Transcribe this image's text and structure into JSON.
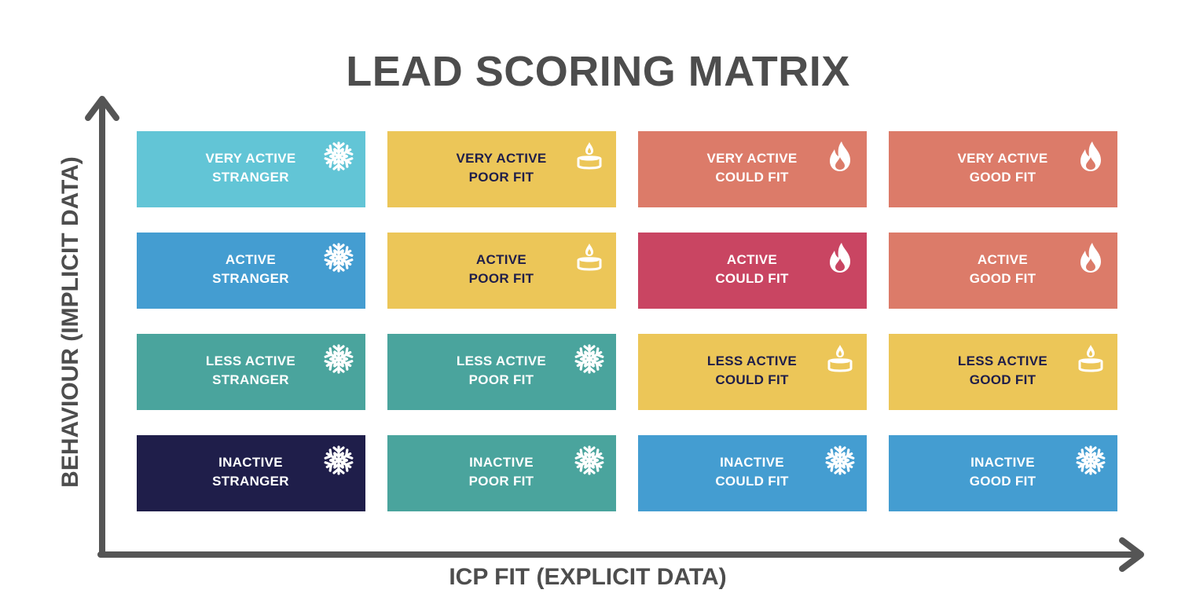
{
  "title": "LEAD SCORING MATRIX",
  "x_axis_label": "ICP FIT (EXPLICIT DATA)",
  "y_axis_label": "BEHAVIOUR (IMPLICIT DATA)",
  "colors": {
    "axis": "#555555",
    "cyan": "#62c5d6",
    "yellow": "#ecc658",
    "salmon": "#dc7b69",
    "crimson": "#c94562",
    "blue": "#449dd1",
    "teal": "#4aa49d",
    "navy": "#1f1e4a"
  },
  "rows": [
    [
      {
        "line1": "VERY ACTIVE",
        "line2": "STRANGER",
        "bg": "#62c5d6",
        "text_color": "#ffffff",
        "icon": "snowflake-icon"
      },
      {
        "line1": "VERY ACTIVE",
        "line2": "POOR FIT",
        "bg": "#ecc658",
        "text_color": "#1f1e4a",
        "icon": "candle-icon"
      },
      {
        "line1": "VERY ACTIVE",
        "line2": "COULD FIT",
        "bg": "#dc7b69",
        "text_color": "#ffffff",
        "icon": "flame-icon"
      },
      {
        "line1": "VERY ACTIVE",
        "line2": "GOOD FIT",
        "bg": "#dc7b69",
        "text_color": "#ffffff",
        "icon": "flame-icon"
      }
    ],
    [
      {
        "line1": "ACTIVE",
        "line2": "STRANGER",
        "bg": "#449dd1",
        "text_color": "#ffffff",
        "icon": "snowflake-icon"
      },
      {
        "line1": "ACTIVE",
        "line2": "POOR FIT",
        "bg": "#ecc658",
        "text_color": "#1f1e4a",
        "icon": "candle-icon"
      },
      {
        "line1": "ACTIVE",
        "line2": "COULD FIT",
        "bg": "#c94562",
        "text_color": "#ffffff",
        "icon": "flame-icon"
      },
      {
        "line1": "ACTIVE",
        "line2": "GOOD FIT",
        "bg": "#dc7b69",
        "text_color": "#ffffff",
        "icon": "flame-icon"
      }
    ],
    [
      {
        "line1": "LESS ACTIVE",
        "line2": "STRANGER",
        "bg": "#4aa49d",
        "text_color": "#ffffff",
        "icon": "snowflake-icon"
      },
      {
        "line1": "LESS ACTIVE",
        "line2": "POOR FIT",
        "bg": "#4aa49d",
        "text_color": "#ffffff",
        "icon": "snowflake-icon"
      },
      {
        "line1": "LESS ACTIVE",
        "line2": "COULD FIT",
        "bg": "#ecc658",
        "text_color": "#1f1e4a",
        "icon": "candle-icon"
      },
      {
        "line1": "LESS ACTIVE",
        "line2": "GOOD FIT",
        "bg": "#ecc658",
        "text_color": "#1f1e4a",
        "icon": "candle-icon"
      }
    ],
    [
      {
        "line1": "INACTIVE",
        "line2": "STRANGER",
        "bg": "#1f1e4a",
        "text_color": "#ffffff",
        "icon": "snowflake-icon"
      },
      {
        "line1": "INACTIVE",
        "line2": "POOR FIT",
        "bg": "#4aa49d",
        "text_color": "#ffffff",
        "icon": "snowflake-icon"
      },
      {
        "line1": "INACTIVE",
        "line2": "COULD FIT",
        "bg": "#449dd1",
        "text_color": "#ffffff",
        "icon": "snowflake-icon"
      },
      {
        "line1": "INACTIVE",
        "line2": "GOOD FIT",
        "bg": "#449dd1",
        "text_color": "#ffffff",
        "icon": "snowflake-icon"
      }
    ]
  ]
}
